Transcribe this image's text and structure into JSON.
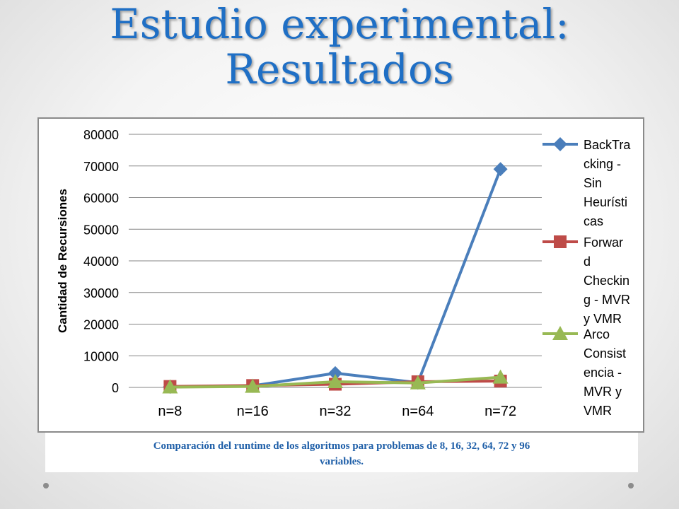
{
  "slide": {
    "title_line1": "Estudio experimental:",
    "title_line2": "Resultados",
    "caption_line1": "Comparación del runtime de los algoritmos para problemas de 8, 16, 32, 64, 72 y 96",
    "caption_line2": "variables."
  },
  "chart_data": {
    "type": "line",
    "title": "",
    "xlabel": "",
    "ylabel": "Cantidad de Recursiones",
    "categories": [
      "n=8",
      "n=16",
      "n=32",
      "n=64",
      "n=72"
    ],
    "ylim": [
      0,
      80000
    ],
    "yticks": [
      0,
      10000,
      20000,
      30000,
      40000,
      50000,
      60000,
      70000,
      80000
    ],
    "grid": "horizontal",
    "legend_position": "right",
    "series": [
      {
        "name": "BackTracking - Sin Heurísticas",
        "legend_lines": [
          "BackTra",
          "cking -",
          "Sin",
          "Heurísti",
          "cas"
        ],
        "marker": "diamond",
        "color": "#4a7ebb",
        "values": [
          200,
          500,
          4500,
          1500,
          69000
        ]
      },
      {
        "name": "Forward Checking - MVR y VMR",
        "legend_lines": [
          "Forwar",
          "d",
          "Checkin",
          "g - MVR",
          "y VMR"
        ],
        "marker": "square",
        "color": "#be4b48",
        "values": [
          300,
          600,
          1000,
          1800,
          2000
        ]
      },
      {
        "name": "Arco Consistencia - MVR y VMR",
        "legend_lines": [
          "Arco",
          "Consist",
          "encia -",
          "MVR y",
          "VMR"
        ],
        "marker": "triangle",
        "color": "#98b954",
        "values": [
          100,
          300,
          1800,
          1400,
          3200
        ]
      }
    ]
  }
}
